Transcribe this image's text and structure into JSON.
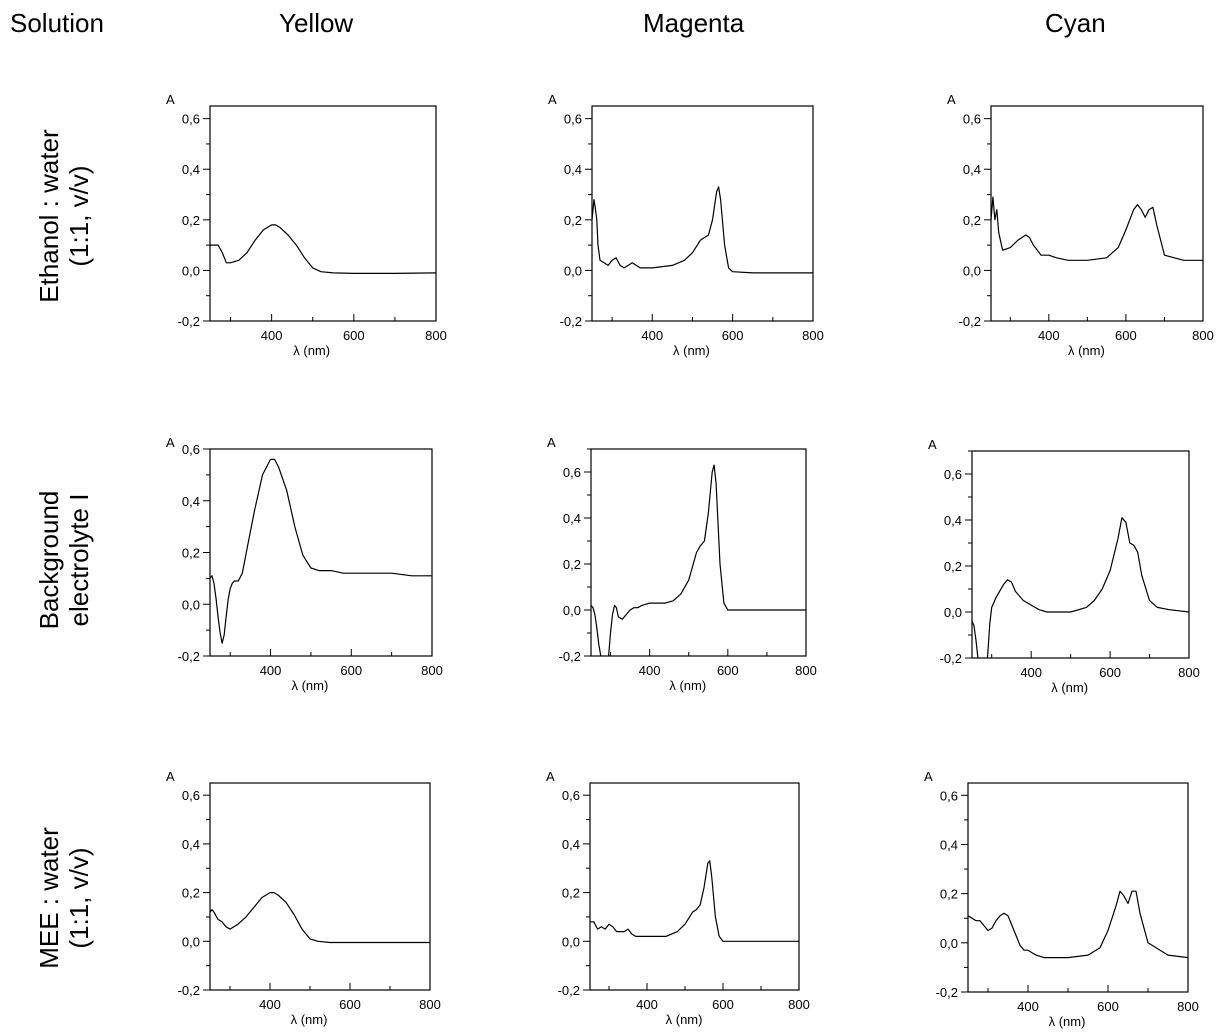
{
  "headers": {
    "solution": "Solution",
    "columns": [
      "Yellow",
      "Magenta",
      "Cyan"
    ]
  },
  "rows": [
    {
      "line1": "Ethanol : water",
      "line2": "(1:1, v/v)"
    },
    {
      "line1": "Background",
      "line2": "electrolyte I"
    },
    {
      "line1": "MEE : water",
      "line2": "(1:1, v/v)"
    }
  ],
  "chart_data": [
    {
      "type": "line",
      "row": "Ethanol : water (1:1, v/v)",
      "column": "Yellow",
      "ylabel": "A",
      "xlabel": "λ (nm)",
      "xlim": [
        250,
        800
      ],
      "ylim": [
        -0.2,
        0.65
      ],
      "yticks": [
        "0,6",
        "0,4",
        "0,2",
        "0,0",
        "-0,2"
      ],
      "xticks": [
        "400",
        "600",
        "800"
      ],
      "x": [
        250,
        262,
        270,
        280,
        290,
        300,
        320,
        340,
        360,
        380,
        400,
        410,
        420,
        440,
        460,
        480,
        500,
        520,
        550,
        600,
        700,
        800
      ],
      "y": [
        0.1,
        0.1,
        0.1,
        0.07,
        0.03,
        0.03,
        0.04,
        0.07,
        0.12,
        0.16,
        0.18,
        0.18,
        0.17,
        0.14,
        0.1,
        0.05,
        0.01,
        -0.005,
        -0.01,
        -0.012,
        -0.012,
        -0.01
      ]
    },
    {
      "type": "line",
      "row": "Ethanol : water (1:1, v/v)",
      "column": "Magenta",
      "ylabel": "A",
      "xlabel": "λ (nm)",
      "xlim": [
        250,
        800
      ],
      "ylim": [
        -0.2,
        0.65
      ],
      "yticks": [
        "0,6",
        "0,4",
        "0,2",
        "0,0",
        "-0,2"
      ],
      "xticks": [
        "400",
        "600",
        "800"
      ],
      "x": [
        250,
        255,
        258,
        262,
        265,
        270,
        280,
        290,
        300,
        310,
        320,
        330,
        340,
        350,
        360,
        370,
        400,
        450,
        480,
        500,
        520,
        530,
        540,
        550,
        560,
        565,
        570,
        580,
        590,
        600,
        650,
        700,
        800
      ],
      "y": [
        0.2,
        0.28,
        0.25,
        0.2,
        0.1,
        0.04,
        0.03,
        0.02,
        0.04,
        0.05,
        0.02,
        0.01,
        0.02,
        0.03,
        0.02,
        0.01,
        0.01,
        0.02,
        0.04,
        0.07,
        0.12,
        0.13,
        0.14,
        0.2,
        0.31,
        0.33,
        0.28,
        0.1,
        0.01,
        -0.005,
        -0.01,
        -0.01,
        -0.01
      ]
    },
    {
      "type": "line",
      "row": "Ethanol : water (1:1, v/v)",
      "column": "Cyan",
      "ylabel": "A",
      "xlabel": "λ (nm)",
      "xlim": [
        250,
        800
      ],
      "ylim": [
        -0.2,
        0.65
      ],
      "yticks": [
        "0,6",
        "0,4",
        "0,2",
        "0,0",
        "-0,2"
      ],
      "xticks": [
        "400",
        "600",
        "800"
      ],
      "x": [
        250,
        255,
        260,
        265,
        270,
        280,
        300,
        320,
        340,
        350,
        360,
        380,
        400,
        420,
        450,
        500,
        550,
        580,
        600,
        620,
        630,
        640,
        650,
        660,
        670,
        680,
        700,
        750,
        800
      ],
      "y": [
        0.2,
        0.29,
        0.2,
        0.24,
        0.15,
        0.08,
        0.09,
        0.12,
        0.14,
        0.13,
        0.1,
        0.06,
        0.06,
        0.05,
        0.04,
        0.04,
        0.05,
        0.09,
        0.16,
        0.24,
        0.26,
        0.24,
        0.21,
        0.24,
        0.25,
        0.18,
        0.06,
        0.04,
        0.04
      ]
    },
    {
      "type": "line",
      "row": "Background electrolyte I",
      "column": "Yellow",
      "ylabel": "A",
      "xlabel": "λ (nm)",
      "xlim": [
        250,
        800
      ],
      "ylim": [
        -0.2,
        0.6
      ],
      "yticks": [
        "0,6",
        "0,4",
        "0,2",
        "0,0",
        "-0,2"
      ],
      "xticks": [
        "400",
        "600",
        "800"
      ],
      "x": [
        250,
        255,
        260,
        265,
        270,
        275,
        280,
        285,
        290,
        295,
        300,
        305,
        310,
        315,
        320,
        330,
        340,
        360,
        380,
        400,
        410,
        420,
        440,
        460,
        480,
        500,
        520,
        550,
        580,
        600,
        620,
        650,
        700,
        750,
        800
      ],
      "y": [
        0.1,
        0.11,
        0.08,
        0.02,
        -0.05,
        -0.11,
        -0.15,
        -0.12,
        -0.05,
        0.02,
        0.06,
        0.08,
        0.09,
        0.09,
        0.09,
        0.12,
        0.2,
        0.36,
        0.5,
        0.56,
        0.56,
        0.53,
        0.44,
        0.3,
        0.19,
        0.14,
        0.13,
        0.13,
        0.12,
        0.12,
        0.12,
        0.12,
        0.12,
        0.11,
        0.11
      ]
    },
    {
      "type": "line",
      "row": "Background electrolyte I",
      "column": "Magenta",
      "ylabel": "A",
      "xlabel": "λ (nm)",
      "xlim": [
        250,
        800
      ],
      "ylim": [
        -0.2,
        0.7
      ],
      "yticks": [
        "0,6",
        "0,4",
        "0,2",
        "0,0",
        "-0,2"
      ],
      "xticks": [
        "400",
        "600",
        "800"
      ],
      "x": [
        250,
        255,
        260,
        265,
        270,
        275,
        280,
        285,
        290,
        295,
        300,
        305,
        310,
        315,
        320,
        330,
        340,
        350,
        360,
        370,
        380,
        400,
        420,
        440,
        460,
        480,
        500,
        520,
        530,
        540,
        550,
        560,
        565,
        570,
        580,
        590,
        600,
        650,
        700,
        800
      ],
      "y": [
        0.02,
        0.01,
        -0.02,
        -0.08,
        -0.15,
        -0.2,
        -0.3,
        -0.3,
        -0.3,
        -0.2,
        -0.1,
        -0.02,
        0.02,
        0.01,
        -0.03,
        -0.04,
        -0.02,
        0.0,
        0.01,
        0.01,
        0.02,
        0.03,
        0.03,
        0.03,
        0.04,
        0.07,
        0.13,
        0.25,
        0.28,
        0.3,
        0.42,
        0.6,
        0.63,
        0.55,
        0.2,
        0.03,
        0.0,
        0.0,
        0.0,
        0.0
      ]
    },
    {
      "type": "line",
      "row": "Background electrolyte I",
      "column": "Cyan",
      "ylabel": "A",
      "xlabel": "λ (nm)",
      "xlim": [
        250,
        800
      ],
      "ylim": [
        -0.2,
        0.7
      ],
      "yticks": [
        "0,6",
        "0,4",
        "0,2",
        "0,0",
        "-0,2"
      ],
      "xticks": [
        "400",
        "600",
        "800"
      ],
      "x": [
        250,
        255,
        260,
        265,
        270,
        275,
        280,
        285,
        290,
        295,
        300,
        310,
        320,
        330,
        340,
        350,
        360,
        380,
        400,
        420,
        440,
        460,
        500,
        540,
        560,
        580,
        600,
        620,
        630,
        640,
        650,
        660,
        670,
        680,
        700,
        720,
        750,
        800
      ],
      "y": [
        -0.04,
        -0.06,
        -0.12,
        -0.2,
        -0.3,
        -0.3,
        -0.3,
        -0.3,
        -0.18,
        -0.05,
        0.02,
        0.06,
        0.09,
        0.12,
        0.14,
        0.13,
        0.09,
        0.05,
        0.03,
        0.01,
        0.0,
        0.0,
        0.0,
        0.02,
        0.05,
        0.1,
        0.18,
        0.32,
        0.41,
        0.39,
        0.3,
        0.29,
        0.26,
        0.16,
        0.05,
        0.02,
        0.01,
        0.0
      ]
    },
    {
      "type": "line",
      "row": "MEE : water (1:1, v/v)",
      "column": "Yellow",
      "ylabel": "A",
      "xlabel": "λ (nm)",
      "xlim": [
        250,
        800
      ],
      "ylim": [
        -0.2,
        0.65
      ],
      "yticks": [
        "0,6",
        "0,4",
        "0,2",
        "0,0",
        "-0,2"
      ],
      "xticks": [
        "400",
        "600",
        "800"
      ],
      "x": [
        250,
        255,
        260,
        270,
        280,
        290,
        300,
        310,
        320,
        340,
        360,
        380,
        400,
        410,
        420,
        440,
        460,
        480,
        500,
        520,
        550,
        600,
        700,
        800
      ],
      "y": [
        0.12,
        0.13,
        0.12,
        0.09,
        0.08,
        0.06,
        0.05,
        0.06,
        0.07,
        0.1,
        0.14,
        0.18,
        0.2,
        0.2,
        0.19,
        0.16,
        0.11,
        0.05,
        0.01,
        0.0,
        -0.005,
        -0.005,
        -0.005,
        -0.005
      ]
    },
    {
      "type": "line",
      "row": "MEE : water (1:1, v/v)",
      "column": "Magenta",
      "ylabel": "A",
      "xlabel": "λ (nm)",
      "xlim": [
        250,
        800
      ],
      "ylim": [
        -0.2,
        0.65
      ],
      "yticks": [
        "0,6",
        "0,4",
        "0,2",
        "0,0",
        "-0,2"
      ],
      "xticks": [
        "400",
        "600",
        "800"
      ],
      "x": [
        250,
        260,
        270,
        280,
        290,
        300,
        310,
        320,
        330,
        340,
        350,
        360,
        370,
        380,
        400,
        450,
        480,
        500,
        520,
        530,
        540,
        550,
        560,
        565,
        570,
        580,
        590,
        600,
        650,
        700,
        800
      ],
      "y": [
        0.08,
        0.08,
        0.05,
        0.06,
        0.05,
        0.07,
        0.06,
        0.04,
        0.04,
        0.04,
        0.05,
        0.03,
        0.02,
        0.02,
        0.02,
        0.02,
        0.04,
        0.07,
        0.12,
        0.13,
        0.15,
        0.22,
        0.32,
        0.33,
        0.27,
        0.1,
        0.02,
        0.0,
        0.0,
        0.0,
        0.0
      ]
    },
    {
      "type": "line",
      "row": "MEE : water (1:1, v/v)",
      "column": "Cyan",
      "ylabel": "A",
      "xlabel": "λ (nm)",
      "xlim": [
        250,
        800
      ],
      "ylim": [
        -0.2,
        0.65
      ],
      "yticks": [
        "0,6",
        "0,4",
        "0,2",
        "0,0",
        "-0,2"
      ],
      "xticks": [
        "400",
        "600",
        "800"
      ],
      "x": [
        250,
        260,
        270,
        280,
        290,
        300,
        310,
        320,
        330,
        340,
        350,
        360,
        370,
        380,
        390,
        400,
        410,
        420,
        440,
        460,
        500,
        550,
        580,
        600,
        620,
        630,
        640,
        650,
        660,
        670,
        680,
        700,
        750,
        800
      ],
      "y": [
        0.11,
        0.1,
        0.09,
        0.09,
        0.07,
        0.05,
        0.06,
        0.09,
        0.11,
        0.12,
        0.11,
        0.07,
        0.03,
        -0.01,
        -0.03,
        -0.03,
        -0.04,
        -0.05,
        -0.06,
        -0.06,
        -0.06,
        -0.05,
        -0.02,
        0.05,
        0.15,
        0.21,
        0.19,
        0.16,
        0.21,
        0.21,
        0.12,
        0.0,
        -0.05,
        -0.06
      ]
    }
  ]
}
